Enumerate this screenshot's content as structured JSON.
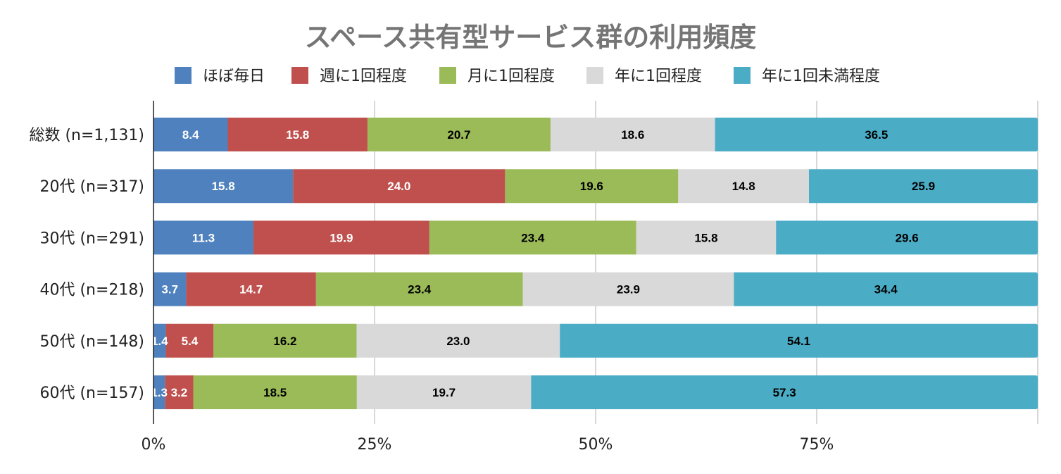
{
  "chart_data": {
    "type": "bar",
    "orientation": "horizontal",
    "stacked": true,
    "title": "スペース共有型サービス群の利用頻度",
    "categories": [
      "総数 (n=1,131)",
      "20代 (n=317)",
      "30代 (n=291)",
      "40代 (n=218)",
      "50代 (n=148)",
      "60代 (n=157)"
    ],
    "series": [
      {
        "name": "ほぼ毎日",
        "color": "#4e81bd",
        "label_color": "#ffffff",
        "values": [
          8.4,
          15.8,
          11.3,
          3.7,
          1.4,
          1.3
        ]
      },
      {
        "name": "週に1回程度",
        "color": "#c0504d",
        "label_color": "#ffffff",
        "values": [
          15.8,
          24.0,
          19.9,
          14.7,
          5.4,
          3.2
        ]
      },
      {
        "name": "月に1回程度",
        "color": "#9bbb59",
        "label_color": "#000000",
        "values": [
          20.7,
          19.6,
          23.4,
          23.4,
          16.2,
          18.5
        ]
      },
      {
        "name": "年に1回程度",
        "color": "#d9d9d9",
        "label_color": "#000000",
        "values": [
          18.6,
          14.8,
          15.8,
          23.9,
          23.0,
          19.7
        ]
      },
      {
        "name": "年に1回未満程度",
        "color": "#4bacc6",
        "label_color": "#000000",
        "values": [
          36.5,
          25.9,
          29.6,
          34.4,
          54.1,
          57.3
        ]
      }
    ],
    "x_ticks": [
      "0%",
      "25%",
      "50%",
      "75%"
    ],
    "x_tick_values": [
      0,
      25,
      50,
      75
    ],
    "xlim": [
      0,
      100
    ],
    "grid": true,
    "legend": "top",
    "xlabel": "",
    "ylabel": ""
  }
}
